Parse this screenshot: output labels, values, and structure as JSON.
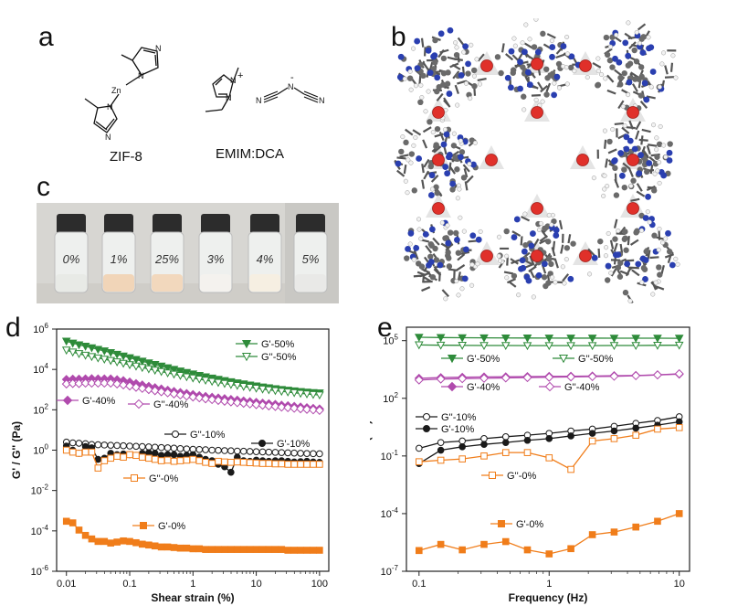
{
  "panel_letters": {
    "a": "a",
    "b": "b",
    "c": "c",
    "d": "d",
    "e": "e"
  },
  "panel_a": {
    "zif_label": "ZIF-8",
    "emim_label": "EMIM:DCA",
    "atoms": {
      "zn": "Zn",
      "n": "N",
      "n_plus": "+",
      "n_minus": "-"
    }
  },
  "panel_c": {
    "vial_labels": [
      "0%",
      "1%",
      "25%",
      "3%",
      "4%",
      "5%"
    ],
    "vial_fill_colors": [
      "#e8eae6",
      "#f1d5b8",
      "#f2d8bd",
      "#f4f2ee",
      "#f6efe2",
      "#e9e9e7"
    ]
  },
  "chart_data": [
    {
      "type": "scatter",
      "panel": "d",
      "xlabel": "Shear strain (%)",
      "ylabel": "G' / G'' (Pa)",
      "x_scale": "log",
      "y_scale": "log",
      "xlim": [
        0.007,
        140
      ],
      "ylim": [
        1e-06,
        1000000
      ],
      "x_ticks": [
        0.01,
        0.1,
        1,
        10,
        100
      ],
      "x_tick_labels": [
        "0.01",
        "0.1",
        "1",
        "10",
        "100"
      ],
      "y_ticks": [
        1e-06,
        0.0001,
        0.01,
        1,
        100,
        10000,
        1000000
      ],
      "y_tick_base": "10",
      "y_tick_exponents": [
        "-6",
        "-4",
        "-2",
        "0",
        "2",
        "4",
        "6"
      ],
      "x": [
        0.01,
        0.0126,
        0.0158,
        0.02,
        0.0251,
        0.0316,
        0.0398,
        0.0501,
        0.0631,
        0.0794,
        0.1,
        0.126,
        0.158,
        0.2,
        0.251,
        0.316,
        0.398,
        0.501,
        0.631,
        0.794,
        1,
        1.26,
        1.58,
        2,
        2.51,
        3.16,
        3.98,
        5.01,
        6.31,
        7.94,
        10,
        12.6,
        15.8,
        20,
        25.1,
        31.6,
        39.8,
        50.1,
        63.1,
        79.4,
        100
      ],
      "series": [
        {
          "name": "G'-50%",
          "color": "#2e8b3a",
          "marker": "triangle-down",
          "filled": true,
          "values": [
            250000,
            200000,
            165000,
            140000,
            118000,
            98000,
            82000,
            68000,
            56000,
            46000,
            38000,
            31000,
            25500,
            21000,
            17500,
            14500,
            12000,
            10000,
            8300,
            7000,
            5900,
            5000,
            4300,
            3700,
            3200,
            2800,
            2450,
            2150,
            1900,
            1680,
            1500,
            1350,
            1220,
            1110,
            1010,
            930,
            860,
            800,
            750,
            710,
            680
          ]
        },
        {
          "name": "G''-50%",
          "color": "#2e8b3a",
          "marker": "triangle-down",
          "filled": false,
          "values": [
            90000,
            72000,
            60000,
            50000,
            43000,
            37000,
            32000,
            27500,
            23500,
            20000,
            17000,
            14500,
            12400,
            10600,
            9100,
            7800,
            6700,
            5800,
            5000,
            4300,
            3750,
            3300,
            2900,
            2550,
            2250,
            2000,
            1780,
            1600,
            1430,
            1290,
            1170,
            1060,
            970,
            890,
            820,
            760,
            700,
            650,
            610,
            570,
            540
          ]
        },
        {
          "name": "G'-40%",
          "color": "#b04aad",
          "marker": "diamond",
          "filled": true,
          "values": [
            3200,
            3300,
            3300,
            3400,
            3500,
            3400,
            3400,
            3400,
            3100,
            2800,
            2400,
            2000,
            1700,
            1450,
            1250,
            1080,
            930,
            810,
            720,
            640,
            570,
            510,
            460,
            420,
            385,
            355,
            325,
            300,
            275,
            255,
            235,
            215,
            200,
            185,
            170,
            160,
            148,
            138,
            128,
            118,
            110
          ]
        },
        {
          "name": "G''-40%",
          "color": "#b04aad",
          "marker": "diamond",
          "filled": false,
          "values": [
            1900,
            2000,
            2000,
            2100,
            2100,
            2100,
            2100,
            2100,
            1900,
            1700,
            1500,
            1300,
            1150,
            1000,
            880,
            780,
            690,
            610,
            540,
            480,
            430,
            390,
            350,
            320,
            290,
            265,
            245,
            225,
            210,
            195,
            180,
            168,
            156,
            146,
            136,
            127,
            119,
            112,
            105,
            99,
            93
          ]
        },
        {
          "name": "G''-10%",
          "color": "#1a1a1a",
          "marker": "circle",
          "filled": false,
          "values": [
            2.5,
            2.3,
            2.2,
            2.1,
            1.9,
            1.85,
            1.8,
            1.75,
            1.7,
            1.65,
            1.6,
            1.55,
            1.5,
            1.45,
            1.4,
            1.35,
            1.3,
            1.25,
            1.2,
            1.15,
            1.1,
            1.08,
            1.05,
            1,
            0.98,
            0.95,
            0.93,
            0.9,
            0.88,
            0.86,
            0.84,
            0.82,
            0.8,
            0.78,
            0.76,
            0.74,
            0.72,
            0.7,
            0.68,
            0.67,
            0.66
          ]
        },
        {
          "name": "G'-10%",
          "color": "#1a1a1a",
          "marker": "circle",
          "filled": true,
          "values": [
            1.6,
            1,
            0.7,
            1.5,
            1.3,
            0.35,
            0.4,
            0.7,
            0.6,
            0.65,
            0.6,
            0.55,
            0.7,
            0.75,
            0.7,
            0.55,
            0.6,
            0.6,
            0.5,
            0.55,
            0.6,
            0.45,
            0.35,
            0.3,
            0.2,
            0.15,
            0.08,
            0.45,
            0.3,
            0.28,
            0.32,
            0.3,
            0.28,
            0.3,
            0.3,
            0.28,
            0.26,
            0.27,
            0.28,
            0.26,
            0.25
          ]
        },
        {
          "name": "G''-0%",
          "color": "#f07d1a",
          "marker": "square",
          "filled": false,
          "values": [
            1,
            0.8,
            0.7,
            0.8,
            0.8,
            0.13,
            0.3,
            0.4,
            0.5,
            0.45,
            0.6,
            0.55,
            0.45,
            0.4,
            0.35,
            0.3,
            0.32,
            0.28,
            0.3,
            0.32,
            0.35,
            0.3,
            0.25,
            0.22,
            0.28,
            0.26,
            0.25,
            0.26,
            0.25,
            0.24,
            0.23,
            0.22,
            0.22,
            0.21,
            0.21,
            0.2,
            0.2,
            0.2,
            0.2,
            0.2,
            0.2
          ]
        },
        {
          "name": "G'-0%",
          "color": "#f07d1a",
          "marker": "square",
          "filled": true,
          "values": [
            0.0003,
            0.00025,
            0.00011,
            6e-05,
            4e-05,
            3e-05,
            3e-05,
            2.5e-05,
            2.8e-05,
            3.2e-05,
            3e-05,
            2.6e-05,
            2.2e-05,
            2e-05,
            1.8e-05,
            1.6e-05,
            1.6e-05,
            1.5e-05,
            1.4e-05,
            1.4e-05,
            1.3e-05,
            1.3e-05,
            1.2e-05,
            1.2e-05,
            1.2e-05,
            1.2e-05,
            1.2e-05,
            1.2e-05,
            1.2e-05,
            1.2e-05,
            1.2e-05,
            1.2e-05,
            1.2e-05,
            1.2e-05,
            1.2e-05,
            1.1e-05,
            1.1e-05,
            1.1e-05,
            1.1e-05,
            1.1e-05,
            1.1e-05
          ]
        }
      ]
    },
    {
      "type": "scatter",
      "panel": "e",
      "xlabel": "Frequency (Hz)",
      "ylabel": "G' / G'' (Pa)",
      "x_scale": "log",
      "y_scale": "log",
      "xlim": [
        0.08,
        12
      ],
      "ylim": [
        1e-07,
        500000
      ],
      "x_ticks": [
        0.1,
        1,
        10
      ],
      "x_tick_labels": [
        "0.1",
        "1",
        "10"
      ],
      "y_ticks": [
        1e-07,
        0.0001,
        0.1,
        100,
        100000
      ],
      "y_tick_base": "10",
      "y_tick_exponents": [
        "-7",
        "-4",
        "-1",
        "2",
        "5"
      ],
      "x": [
        0.1,
        0.147,
        0.215,
        0.316,
        0.464,
        0.681,
        1,
        1.47,
        2.15,
        3.16,
        4.64,
        6.81,
        10
      ],
      "series": [
        {
          "name": "G'-50%",
          "color": "#2e8b3a",
          "marker": "triangle-down",
          "filled": true,
          "values": [
            150000,
            145000,
            142000,
            140000,
            138000,
            137000,
            136000,
            135000,
            135000,
            134000,
            134000,
            134000,
            133000
          ]
        },
        {
          "name": "G''-50%",
          "color": "#2e8b3a",
          "marker": "triangle-down",
          "filled": false,
          "values": [
            60000,
            58000,
            57000,
            56000,
            56000,
            55000,
            55000,
            55000,
            55000,
            56000,
            56000,
            57000,
            58000
          ]
        },
        {
          "name": "G'-40%",
          "color": "#b04aad",
          "marker": "diamond",
          "filled": true,
          "values": [
            1100,
            1200,
            1250,
            1300,
            1320,
            1350,
            1380,
            1400,
            1450,
            1500,
            1550,
            1650,
            1800
          ]
        },
        {
          "name": "G''-40%",
          "color": "#b04aad",
          "marker": "diamond",
          "filled": false,
          "values": [
            900,
            1000,
            1050,
            1100,
            1150,
            1200,
            1250,
            1300,
            1350,
            1400,
            1500,
            1650,
            1900
          ]
        },
        {
          "name": "G''-10%",
          "color": "#1a1a1a",
          "marker": "circle",
          "filled": false,
          "values": [
            0.25,
            0.5,
            0.6,
            0.8,
            1,
            1.2,
            1.5,
            2,
            2.5,
            3.5,
            5,
            7,
            11
          ]
        },
        {
          "name": "G'-10%",
          "color": "#1a1a1a",
          "marker": "circle",
          "filled": true,
          "values": [
            0.04,
            0.2,
            0.3,
            0.4,
            0.5,
            0.65,
            0.8,
            1.1,
            1.5,
            2,
            2.8,
            4,
            6
          ]
        },
        {
          "name": "G''-0%",
          "color": "#f07d1a",
          "marker": "square",
          "filled": false,
          "values": [
            0.05,
            0.06,
            0.07,
            0.1,
            0.15,
            0.15,
            0.08,
            0.02,
            0.6,
            0.8,
            1.2,
            2.5,
            3
          ]
        },
        {
          "name": "G'-0%",
          "color": "#f07d1a",
          "marker": "square",
          "filled": true,
          "values": [
            1.2e-06,
            2.5e-06,
            1.3e-06,
            2.5e-06,
            3.5e-06,
            1.3e-06,
            8e-07,
            1.5e-06,
            8e-06,
            1.1e-05,
            2e-05,
            4e-05,
            0.0001
          ]
        }
      ]
    }
  ]
}
